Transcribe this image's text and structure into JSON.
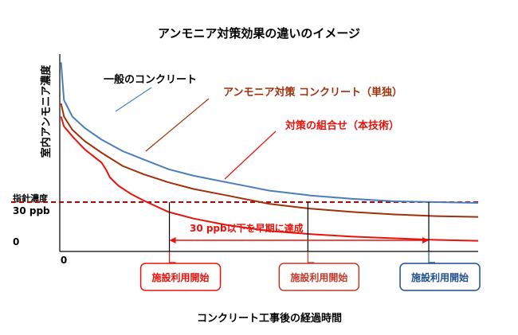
{
  "chart_data": {
    "type": "line",
    "title": "アンモニア対策効果の違いのイメージ",
    "xlabel": "コンクリート工事後の経過時間",
    "ylabel": "室内アンモニア濃度",
    "x_origin_label": "0",
    "y_ticks": [
      {
        "value": 0,
        "label": "0"
      },
      {
        "value": 30,
        "label": "30 ppb",
        "label_above": "指針濃度"
      }
    ],
    "x_range": [
      0,
      100
    ],
    "y_range": [
      0,
      120
    ],
    "grid": false,
    "threshold": {
      "value": 30,
      "color": "#c00000",
      "style": "dashed"
    },
    "series": [
      {
        "name": "一般のコンクリート",
        "color": "#4a7ebb",
        "points": [
          [
            0.3,
            115
          ],
          [
            1,
            92
          ],
          [
            3,
            82
          ],
          [
            6,
            75
          ],
          [
            10,
            68
          ],
          [
            15,
            61
          ],
          [
            20,
            56
          ],
          [
            26,
            50
          ],
          [
            32,
            46
          ],
          [
            40,
            42
          ],
          [
            50,
            37
          ],
          [
            60,
            34
          ],
          [
            70,
            32
          ],
          [
            80,
            30.5
          ],
          [
            90,
            30
          ],
          [
            100,
            29.5
          ]
        ]
      },
      {
        "name": "アンモニア対策 コンクリート（単独）",
        "color": "#a0300a",
        "points": [
          [
            0.3,
            90
          ],
          [
            1,
            82
          ],
          [
            3,
            74
          ],
          [
            6,
            67
          ],
          [
            10,
            60
          ],
          [
            15,
            52
          ],
          [
            20,
            47
          ],
          [
            26,
            42
          ],
          [
            32,
            38
          ],
          [
            40,
            34
          ],
          [
            50,
            29
          ],
          [
            60,
            26
          ],
          [
            70,
            24
          ],
          [
            80,
            22.5
          ],
          [
            90,
            21.5
          ],
          [
            100,
            21
          ]
        ]
      },
      {
        "name": "対策の組合せ（本技術）",
        "color": "#e8120c",
        "points": [
          [
            0.3,
            82
          ],
          [
            1,
            76
          ],
          [
            3,
            70
          ],
          [
            6,
            62
          ],
          [
            9,
            56
          ],
          [
            10,
            54
          ],
          [
            11,
            50
          ],
          [
            12,
            45
          ],
          [
            14,
            40
          ],
          [
            17,
            35
          ],
          [
            20,
            31
          ],
          [
            26,
            24
          ],
          [
            32,
            20
          ],
          [
            40,
            16
          ],
          [
            50,
            12.5
          ],
          [
            60,
            10.5
          ],
          [
            70,
            9
          ],
          [
            80,
            8
          ],
          [
            90,
            7
          ],
          [
            100,
            6.5
          ]
        ]
      }
    ],
    "annotations": {
      "range_text": "30 ppb以下を早期に達成",
      "start_labels": [
        {
          "text": "施設利用開始",
          "x": 26.2,
          "color": "#e8120c"
        },
        {
          "text": "施設利用開始",
          "x": 59.3,
          "color": "#c0392b"
        },
        {
          "text": "施設利用開始",
          "x": 88.2,
          "color": "#1f4e8c"
        }
      ],
      "range": [
        26.2,
        88.2
      ]
    }
  }
}
